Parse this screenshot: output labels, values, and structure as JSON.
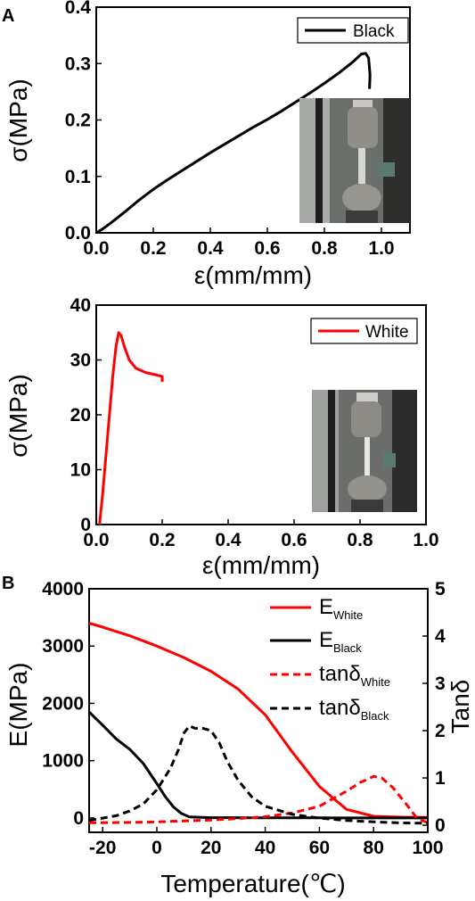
{
  "figure": {
    "panel_labels": [
      "A",
      "B"
    ],
    "photo_descriptions": []
  },
  "chart_data": [
    {
      "type": "line",
      "panel": "A",
      "xlabel": "ε(mm/mm)",
      "ylabel": "σ(MPa)",
      "xlim": [
        0.0,
        1.1
      ],
      "ylim": [
        0.0,
        0.4
      ],
      "xticks": [
        "0.0",
        "0.2",
        "0.4",
        "0.6",
        "0.8",
        "1.0"
      ],
      "yticks": [
        "0.0",
        "0.1",
        "0.2",
        "0.3",
        "0.4"
      ],
      "legend": {
        "position": "top-right"
      },
      "grid": false,
      "inset_photo": true,
      "series": [
        {
          "name": "Black",
          "color": "#000000",
          "dash": "solid",
          "points": [
            [
              0.0,
              0.0
            ],
            [
              0.02,
              0.006
            ],
            [
              0.05,
              0.017
            ],
            [
              0.1,
              0.037
            ],
            [
              0.15,
              0.058
            ],
            [
              0.2,
              0.077
            ],
            [
              0.25,
              0.094
            ],
            [
              0.3,
              0.11
            ],
            [
              0.35,
              0.126
            ],
            [
              0.4,
              0.142
            ],
            [
              0.45,
              0.157
            ],
            [
              0.5,
              0.172
            ],
            [
              0.55,
              0.187
            ],
            [
              0.6,
              0.201
            ],
            [
              0.65,
              0.216
            ],
            [
              0.7,
              0.232
            ],
            [
              0.75,
              0.248
            ],
            [
              0.8,
              0.265
            ],
            [
              0.85,
              0.283
            ],
            [
              0.9,
              0.303
            ],
            [
              0.93,
              0.317
            ],
            [
              0.945,
              0.318
            ],
            [
              0.955,
              0.31
            ],
            [
              0.96,
              0.28
            ],
            [
              0.958,
              0.255
            ]
          ]
        }
      ]
    },
    {
      "type": "line",
      "panel": "A",
      "xlabel": "ε(mm/mm)",
      "ylabel": "σ(MPa)",
      "xlim": [
        0.0,
        1.0
      ],
      "ylim": [
        0,
        40
      ],
      "xticks": [
        "0.0",
        "0.2",
        "0.4",
        "0.6",
        "0.8",
        "1.0"
      ],
      "yticks": [
        "0",
        "10",
        "20",
        "30",
        "40"
      ],
      "legend": {
        "position": "top-right"
      },
      "grid": false,
      "inset_photo": true,
      "series": [
        {
          "name": "White",
          "color": "#ff0000",
          "dash": "solid",
          "points": [
            [
              0.01,
              0.0
            ],
            [
              0.02,
              6
            ],
            [
              0.03,
              13
            ],
            [
              0.04,
              20
            ],
            [
              0.05,
              27
            ],
            [
              0.06,
              32.5
            ],
            [
              0.068,
              35
            ],
            [
              0.075,
              34.5
            ],
            [
              0.085,
              32.5
            ],
            [
              0.1,
              30
            ],
            [
              0.12,
              28.5
            ],
            [
              0.15,
              27.7
            ],
            [
              0.18,
              27.3
            ],
            [
              0.2,
              27.0
            ],
            [
              0.2,
              26.0
            ]
          ]
        }
      ]
    },
    {
      "type": "line",
      "panel": "B",
      "xlabel": "Temperature(℃)",
      "ylabel": "E(MPa)",
      "ylabel2": "Tanδ",
      "xlim": [
        -25,
        100
      ],
      "ylim": [
        -250,
        4000
      ],
      "ylim2": [
        -0.15,
        5
      ],
      "xticks": [
        "-20",
        "0",
        "20",
        "40",
        "60",
        "80",
        "100"
      ],
      "yticks": [
        "0",
        "1000",
        "2000",
        "3000",
        "4000"
      ],
      "yticks2": [
        "0",
        "1",
        "2",
        "3",
        "4",
        "5"
      ],
      "legend": {
        "position": "top-right"
      },
      "grid": false,
      "series": [
        {
          "name": "E",
          "subscript": "White",
          "axis": "left",
          "color": "#ff0000",
          "dash": "solid",
          "points": [
            [
              -25,
              3400
            ],
            [
              -20,
              3330
            ],
            [
              -10,
              3180
            ],
            [
              0,
              3000
            ],
            [
              10,
              2800
            ],
            [
              20,
              2560
            ],
            [
              30,
              2250
            ],
            [
              40,
              1800
            ],
            [
              50,
              1150
            ],
            [
              60,
              550
            ],
            [
              70,
              150
            ],
            [
              80,
              30
            ],
            [
              90,
              15
            ],
            [
              100,
              10
            ]
          ]
        },
        {
          "name": "E",
          "subscript": "Black",
          "axis": "left",
          "color": "#000000",
          "dash": "solid",
          "points": [
            [
              -25,
              1850
            ],
            [
              -20,
              1620
            ],
            [
              -15,
              1380
            ],
            [
              -10,
              1200
            ],
            [
              -5,
              950
            ],
            [
              0,
              600
            ],
            [
              3,
              380
            ],
            [
              6,
              200
            ],
            [
              9,
              80
            ],
            [
              12,
              20
            ],
            [
              20,
              5
            ],
            [
              40,
              3
            ],
            [
              60,
              2
            ],
            [
              100,
              1
            ]
          ]
        },
        {
          "name": "tanδ",
          "subscript": "White",
          "axis": "right",
          "color": "#ff0000",
          "dash": "dashed",
          "points": [
            [
              -25,
              0.05
            ],
            [
              -10,
              0.06
            ],
            [
              0,
              0.07
            ],
            [
              10,
              0.09
            ],
            [
              20,
              0.11
            ],
            [
              30,
              0.14
            ],
            [
              40,
              0.18
            ],
            [
              50,
              0.26
            ],
            [
              60,
              0.4
            ],
            [
              70,
              0.72
            ],
            [
              75,
              0.9
            ],
            [
              80,
              1.03
            ],
            [
              83,
              1.0
            ],
            [
              87,
              0.8
            ],
            [
              92,
              0.45
            ],
            [
              96,
              0.15
            ],
            [
              100,
              0.05
            ]
          ]
        },
        {
          "name": "tanδ",
          "subscript": "Black",
          "axis": "right",
          "color": "#000000",
          "dash": "dashed",
          "points": [
            [
              -25,
              0.1
            ],
            [
              -20,
              0.15
            ],
            [
              -15,
              0.2
            ],
            [
              -10,
              0.3
            ],
            [
              -5,
              0.45
            ],
            [
              0,
              0.75
            ],
            [
              5,
              1.2
            ],
            [
              8,
              1.6
            ],
            [
              10,
              1.95
            ],
            [
              12,
              2.1
            ],
            [
              14,
              2.05
            ],
            [
              17,
              2.05
            ],
            [
              20,
              2.0
            ],
            [
              23,
              1.75
            ],
            [
              26,
              1.35
            ],
            [
              30,
              0.95
            ],
            [
              35,
              0.6
            ],
            [
              40,
              0.4
            ],
            [
              50,
              0.23
            ],
            [
              60,
              0.15
            ],
            [
              70,
              0.1
            ],
            [
              80,
              0.07
            ],
            [
              90,
              0.05
            ],
            [
              100,
              0.04
            ]
          ]
        }
      ]
    }
  ]
}
